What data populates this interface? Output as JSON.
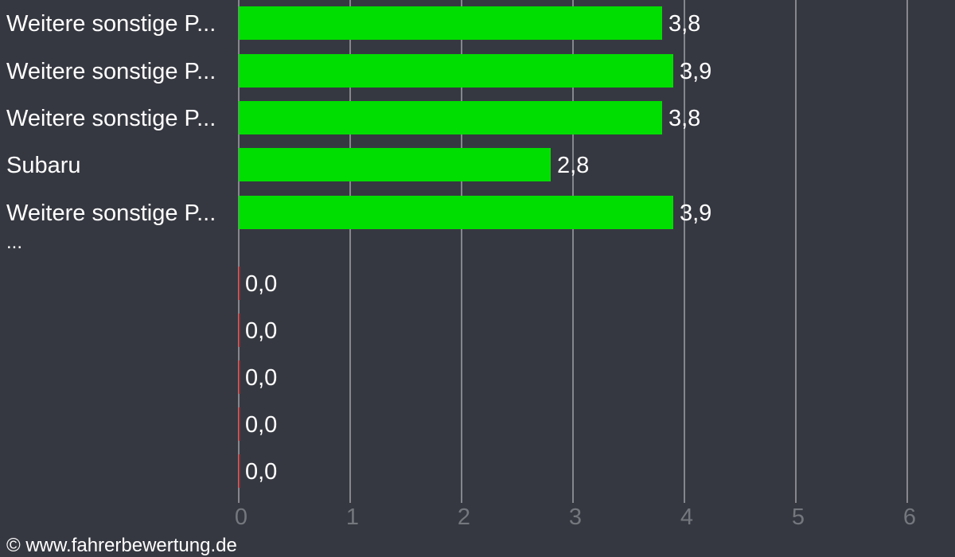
{
  "chart_data": {
    "type": "bar",
    "orientation": "horizontal",
    "categories": [
      "Weitere sonstige P...",
      "Weitere sonstige P...",
      "Weitere sonstige P...",
      "Subaru",
      "Weitere sonstige P...",
      "",
      "",
      "",
      "",
      ""
    ],
    "values": [
      3.8,
      3.9,
      3.8,
      2.8,
      3.9,
      0.0,
      0.0,
      0.0,
      0.0,
      0.0
    ],
    "value_labels": [
      "3,8",
      "3,9",
      "3,8",
      "2,8",
      "3,9",
      "0,0",
      "0,0",
      "0,0",
      "0,0",
      "0,0"
    ],
    "xlim": [
      0,
      6
    ],
    "xticks": [
      "0",
      "1",
      "2",
      "3",
      "4",
      "5",
      "6"
    ],
    "grid": true,
    "group_separator_text": "...",
    "title": "",
    "xlabel": "",
    "ylabel": ""
  },
  "colors": {
    "background": "#363841",
    "bar": "#00dd00",
    "zero_bar": "#cc2222",
    "grid": "#85878d",
    "tick_text": "#75777e",
    "text": "#ffffff"
  },
  "footer": {
    "copyright": "© www.fahrerbewertung.de"
  }
}
